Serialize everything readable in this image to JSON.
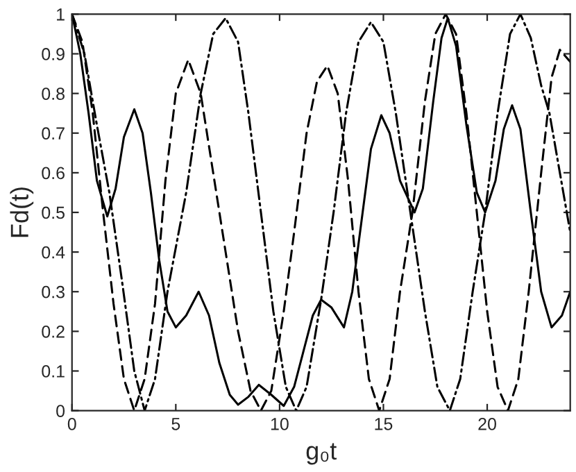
{
  "chart_data": {
    "type": "line",
    "xlabel": "g₀t",
    "ylabel": "Fd(t)",
    "xlim": [
      0,
      24
    ],
    "ylim": [
      0,
      1
    ],
    "xticks": [
      0,
      5,
      10,
      15,
      20
    ],
    "yticks": [
      0,
      0.1,
      0.2,
      0.3,
      0.4,
      0.5,
      0.6,
      0.7,
      0.8,
      0.9,
      1
    ],
    "grid": false,
    "legend": false,
    "series": [
      {
        "color": "#000000",
        "line_style": "solid",
        "x": [
          0,
          0.4,
          0.8,
          1.2,
          1.7,
          2.1,
          2.5,
          3.0,
          3.4,
          3.8,
          4.2,
          4.6,
          5.0,
          5.5,
          6.1,
          6.6,
          7.1,
          7.6,
          8.0,
          8.5,
          9.0,
          9.6,
          10.2,
          10.7,
          11.2,
          11.6,
          12.0,
          12.5,
          13.1,
          13.5,
          14.0,
          14.4,
          14.9,
          15.3,
          15.8,
          16.5,
          16.9,
          17.4,
          17.8,
          18.1,
          18.5,
          19.0,
          19.5,
          19.9,
          20.4,
          20.8,
          21.2,
          21.6,
          22.1,
          22.6,
          23.1,
          23.6,
          24
        ],
        "values": [
          1,
          0.9,
          0.75,
          0.58,
          0.49,
          0.56,
          0.69,
          0.76,
          0.7,
          0.55,
          0.38,
          0.25,
          0.21,
          0.24,
          0.3,
          0.24,
          0.12,
          0.04,
          0.015,
          0.035,
          0.065,
          0.04,
          0.012,
          0.06,
          0.16,
          0.24,
          0.28,
          0.26,
          0.21,
          0.3,
          0.5,
          0.66,
          0.745,
          0.7,
          0.58,
          0.5,
          0.56,
          0.78,
          0.94,
          0.99,
          0.92,
          0.72,
          0.55,
          0.5,
          0.58,
          0.71,
          0.77,
          0.71,
          0.5,
          0.3,
          0.21,
          0.24,
          0.3
        ]
      },
      {
        "color": "#000000",
        "line_style": "dashed",
        "x": [
          0,
          0.5,
          1,
          1.5,
          2,
          2.5,
          3.0,
          3.5,
          4,
          4.5,
          5,
          5.6,
          6.2,
          6.8,
          7.4,
          8,
          8.6,
          9.1,
          9.6,
          10.2,
          10.7,
          11.3,
          11.8,
          12.3,
          12.8,
          13.3,
          13.8,
          14.3,
          14.8,
          15.3,
          15.8,
          16.4,
          17,
          17.5,
          18.0,
          18.5,
          19,
          19.5,
          20,
          20.5,
          21,
          21.5,
          22,
          22.6,
          23.1,
          23.5,
          24
        ],
        "values": [
          1,
          0.93,
          0.75,
          0.5,
          0.27,
          0.08,
          0,
          0.08,
          0.27,
          0.58,
          0.8,
          0.885,
          0.8,
          0.6,
          0.4,
          0.2,
          0.05,
          0,
          0.05,
          0.25,
          0.45,
          0.7,
          0.83,
          0.87,
          0.8,
          0.58,
          0.3,
          0.08,
          0,
          0.08,
          0.3,
          0.5,
          0.78,
          0.95,
          1,
          0.95,
          0.75,
          0.5,
          0.25,
          0.06,
          0,
          0.08,
          0.3,
          0.6,
          0.84,
          0.91,
          0.88
        ]
      },
      {
        "color": "#000000",
        "line_style": "dashdot",
        "x": [
          0,
          0.6,
          1.2,
          1.8,
          2.4,
          3.0,
          3.5,
          4,
          4.6,
          5.5,
          6.2,
          6.8,
          7.4,
          8,
          8.5,
          9.1,
          9.7,
          10.3,
          10.8,
          11.3,
          12,
          12.6,
          13.2,
          13.8,
          14.4,
          15,
          15.6,
          16.3,
          17,
          17.6,
          18.2,
          18.7,
          19.3,
          19.9,
          20.5,
          21.1,
          21.6,
          22.1,
          22.6,
          23,
          23.5,
          24
        ],
        "values": [
          1,
          0.9,
          0.72,
          0.55,
          0.33,
          0.1,
          0,
          0.08,
          0.3,
          0.55,
          0.8,
          0.95,
          0.99,
          0.93,
          0.75,
          0.5,
          0.25,
          0.06,
          0,
          0.06,
          0.28,
          0.5,
          0.75,
          0.93,
          0.98,
          0.93,
          0.75,
          0.5,
          0.25,
          0.06,
          0,
          0.08,
          0.3,
          0.5,
          0.75,
          0.95,
          1,
          0.94,
          0.82,
          0.75,
          0.6,
          0.45
        ]
      }
    ]
  }
}
